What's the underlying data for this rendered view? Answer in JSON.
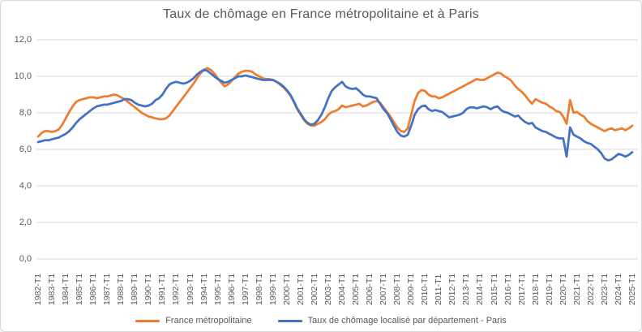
{
  "chart_data": {
    "type": "line",
    "title": "Taux de chômage en France métropolitaine et à Paris",
    "x_start": "1982-T1",
    "x_end": "2025-T1",
    "frequency": "quarterly",
    "x_tick_labels": [
      "1982-T1",
      "1983-T1",
      "1984-T1",
      "1985-T1",
      "1986-T1",
      "1987-T1",
      "1988-T1",
      "1989-T1",
      "1990-T1",
      "1991-T1",
      "1992-T1",
      "1993-T1",
      "1994-T1",
      "1995-T1",
      "1996-T1",
      "1997-T1",
      "1998-T1",
      "1999-T1",
      "2000-T1",
      "2001-T1",
      "2002-T1",
      "2003-T1",
      "2004-T1",
      "2005-T1",
      "2006-T1",
      "2007-T1",
      "2008-T1",
      "2009-T1",
      "2010-T1",
      "2011-T1",
      "2012-T1",
      "2013-T1",
      "2014-T1",
      "2015-T1",
      "2016-T1",
      "2017-T1",
      "2018-T1",
      "2019-T1",
      "2020-T1",
      "2021-T1",
      "2022-T1",
      "2023-T1",
      "2024-T1",
      "2025-T1"
    ],
    "y_ticks": [
      12,
      10,
      8,
      6,
      4,
      2,
      0
    ],
    "y_tick_labels": [
      "12,0",
      "10,0",
      "8,0",
      "6,0",
      "4,0",
      "2,0",
      "0,0"
    ],
    "ylim": [
      0,
      12
    ],
    "grid": "horizontal",
    "legend_position": "bottom",
    "colors": {
      "grid": "#D9D9D9",
      "text": "#595959",
      "border": "#D9D9D9"
    },
    "series": [
      {
        "name": "France métropolitaine",
        "color": "#ED7D31",
        "values": [
          6.7,
          6.9,
          7.0,
          7.0,
          6.95,
          7.0,
          7.1,
          7.35,
          7.7,
          8.05,
          8.35,
          8.6,
          8.7,
          8.75,
          8.8,
          8.85,
          8.85,
          8.8,
          8.85,
          8.9,
          8.9,
          8.95,
          9.0,
          8.95,
          8.85,
          8.75,
          8.6,
          8.45,
          8.3,
          8.15,
          8.0,
          7.9,
          7.8,
          7.75,
          7.7,
          7.65,
          7.65,
          7.7,
          7.85,
          8.1,
          8.35,
          8.6,
          8.85,
          9.1,
          9.35,
          9.6,
          9.9,
          10.15,
          10.35,
          10.45,
          10.35,
          10.15,
          9.9,
          9.65,
          9.45,
          9.55,
          9.75,
          9.95,
          10.15,
          10.25,
          10.3,
          10.3,
          10.25,
          10.1,
          10.0,
          9.9,
          9.85,
          9.85,
          9.8,
          9.7,
          9.55,
          9.4,
          9.2,
          8.95,
          8.6,
          8.2,
          7.9,
          7.6,
          7.4,
          7.3,
          7.3,
          7.4,
          7.5,
          7.65,
          7.9,
          8.05,
          8.1,
          8.2,
          8.4,
          8.3,
          8.35,
          8.4,
          8.45,
          8.5,
          8.35,
          8.4,
          8.5,
          8.6,
          8.65,
          8.55,
          8.3,
          8.05,
          7.8,
          7.5,
          7.2,
          7.0,
          6.95,
          7.15,
          7.9,
          8.65,
          9.1,
          9.25,
          9.2,
          9.0,
          8.9,
          8.9,
          8.8,
          8.85,
          8.95,
          9.05,
          9.15,
          9.25,
          9.35,
          9.45,
          9.55,
          9.65,
          9.75,
          9.85,
          9.8,
          9.8,
          9.9,
          10.0,
          10.1,
          10.2,
          10.15,
          10.0,
          9.9,
          9.75,
          9.5,
          9.3,
          9.15,
          8.95,
          8.7,
          8.5,
          8.75,
          8.65,
          8.55,
          8.5,
          8.35,
          8.25,
          8.1,
          8.05,
          7.8,
          7.4,
          8.7,
          8.0,
          8.05,
          7.9,
          7.8,
          7.55,
          7.4,
          7.3,
          7.2,
          7.1,
          7.0,
          7.1,
          7.15,
          7.05,
          7.1,
          7.15,
          7.05,
          7.15,
          7.3
        ]
      },
      {
        "name": "Taux de chômage localisé par département - Paris",
        "color": "#4472C4",
        "values": [
          6.4,
          6.45,
          6.5,
          6.5,
          6.55,
          6.6,
          6.65,
          6.75,
          6.85,
          7.0,
          7.2,
          7.45,
          7.65,
          7.8,
          7.95,
          8.1,
          8.25,
          8.35,
          8.4,
          8.45,
          8.45,
          8.5,
          8.55,
          8.6,
          8.65,
          8.75,
          8.75,
          8.7,
          8.55,
          8.45,
          8.4,
          8.35,
          8.4,
          8.5,
          8.7,
          8.8,
          9.0,
          9.3,
          9.55,
          9.65,
          9.7,
          9.65,
          9.6,
          9.65,
          9.75,
          9.9,
          10.1,
          10.25,
          10.35,
          10.3,
          10.15,
          10.0,
          9.85,
          9.75,
          9.65,
          9.7,
          9.8,
          9.9,
          10.0,
          10.0,
          10.05,
          10.0,
          9.95,
          9.9,
          9.85,
          9.8,
          9.8,
          9.8,
          9.8,
          9.7,
          9.6,
          9.45,
          9.25,
          9.0,
          8.65,
          8.25,
          7.95,
          7.65,
          7.45,
          7.35,
          7.4,
          7.6,
          7.9,
          8.3,
          8.8,
          9.2,
          9.4,
          9.55,
          9.7,
          9.45,
          9.35,
          9.3,
          9.35,
          9.2,
          9.0,
          8.9,
          8.9,
          8.85,
          8.8,
          8.5,
          8.2,
          8.0,
          7.65,
          7.3,
          6.95,
          6.75,
          6.7,
          6.8,
          7.3,
          7.9,
          8.2,
          8.35,
          8.4,
          8.2,
          8.1,
          8.15,
          8.1,
          8.05,
          7.9,
          7.75,
          7.8,
          7.85,
          7.9,
          8.0,
          8.2,
          8.3,
          8.3,
          8.25,
          8.3,
          8.35,
          8.3,
          8.2,
          8.3,
          8.35,
          8.15,
          8.05,
          8.0,
          7.9,
          7.8,
          7.85,
          7.65,
          7.5,
          7.4,
          7.45,
          7.2,
          7.1,
          7.0,
          6.95,
          6.85,
          6.75,
          6.65,
          6.6,
          6.6,
          5.6,
          7.2,
          6.8,
          6.7,
          6.6,
          6.45,
          6.35,
          6.3,
          6.15,
          6.0,
          5.8,
          5.5,
          5.4,
          5.45,
          5.6,
          5.75,
          5.7,
          5.6,
          5.7,
          5.85
        ]
      }
    ]
  }
}
